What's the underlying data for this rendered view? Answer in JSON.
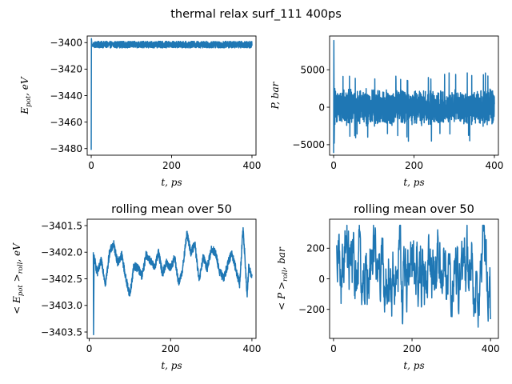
{
  "figure": {
    "suptitle": "thermal relax surf_111 400ps"
  },
  "colors": {
    "line": "#1f77b4",
    "axis": "#000000",
    "background": "#ffffff"
  },
  "chart_data": [
    {
      "type": "line",
      "title": "",
      "xlabel_main": "t, ps",
      "ylabel_main": "E",
      "ylabel_sub": "pot",
      "ylabel_tail": ", eV",
      "xlim": [
        -10,
        410
      ],
      "ylim": [
        -3485,
        -3395
      ],
      "xticks": [
        0,
        200,
        400
      ],
      "yticks": [
        -3480,
        -3460,
        -3440,
        -3420,
        -3400
      ],
      "xtick_labels": [
        "0",
        "200",
        "400"
      ],
      "ytick_labels": [
        "−3480",
        "−3460",
        "−3440",
        "−3420",
        "−3400"
      ],
      "grid": false,
      "series": [
        {
          "x_start": 0,
          "x_end": 400,
          "level": -3401.5,
          "amplitude": 2.5,
          "initial_points": [
            [
              0,
              -3481
            ],
            [
              0.5,
              -3397
            ],
            [
              2,
              -3403
            ],
            [
              5,
              -3401
            ]
          ]
        }
      ]
    },
    {
      "type": "line",
      "title": "",
      "xlabel_main": "t, ps",
      "ylabel_main": "P, bar",
      "ylabel_sub": "",
      "ylabel_tail": "",
      "xlim": [
        -10,
        410
      ],
      "ylim": [
        -6400,
        9500
      ],
      "xticks": [
        0,
        200,
        400
      ],
      "yticks": [
        -5000,
        0,
        5000
      ],
      "xtick_labels": [
        "0",
        "200",
        "400"
      ],
      "ytick_labels": [
        "−5000",
        "0",
        "5000"
      ],
      "grid": false,
      "series": [
        {
          "x_start": 0,
          "x_end": 400,
          "level": 0,
          "amplitude": 2600,
          "initial_points": [
            [
              0,
              -6100
            ],
            [
              0.6,
              8900
            ],
            [
              1.5,
              -4800
            ],
            [
              3,
              2500
            ]
          ]
        }
      ]
    },
    {
      "type": "line",
      "title": "rolling mean over 50",
      "xlabel_main": "t, ps",
      "ylabel_main": "< E",
      "ylabel_sub": "pot",
      "ylabel_tail": " >",
      "ylabel_sub2": "roll",
      "ylabel_tail2": ", eV",
      "xlim": [
        -5,
        410
      ],
      "ylim": [
        -3403.62,
        -3401.38
      ],
      "xticks": [
        0,
        200,
        400
      ],
      "yticks": [
        -3403.5,
        -3403.0,
        -3402.5,
        -3402.0,
        -3401.5
      ],
      "xtick_labels": [
        "0",
        "200",
        "400"
      ],
      "ytick_labels": [
        "−3403.5",
        "−3403.0",
        "−3402.5",
        "−3402.0",
        "−3401.5"
      ],
      "grid": false,
      "series": [
        {
          "x_start": 10,
          "x_end": 400,
          "keypoints": [
            [
              10,
              -3402.0
            ],
            [
              10.6,
              -3403.55
            ],
            [
              12,
              -3402.1
            ],
            [
              20,
              -3402.4
            ],
            [
              30,
              -3402.15
            ],
            [
              40,
              -3402.6
            ],
            [
              50,
              -3402.0
            ],
            [
              60,
              -3401.85
            ],
            [
              70,
              -3402.2
            ],
            [
              80,
              -3402.05
            ],
            [
              90,
              -3402.5
            ],
            [
              100,
              -3402.8
            ],
            [
              110,
              -3402.25
            ],
            [
              120,
              -3402.3
            ],
            [
              130,
              -3402.45
            ],
            [
              140,
              -3402.05
            ],
            [
              150,
              -3402.15
            ],
            [
              160,
              -3402.3
            ],
            [
              170,
              -3402.0
            ],
            [
              180,
              -3402.4
            ],
            [
              190,
              -3402.2
            ],
            [
              200,
              -3402.3
            ],
            [
              210,
              -3402.1
            ],
            [
              220,
              -3402.6
            ],
            [
              230,
              -3402.3
            ],
            [
              240,
              -3401.65
            ],
            [
              250,
              -3402.0
            ],
            [
              260,
              -3401.85
            ],
            [
              270,
              -3402.55
            ],
            [
              280,
              -3402.1
            ],
            [
              290,
              -3402.3
            ],
            [
              300,
              -3401.95
            ],
            [
              310,
              -3402.0
            ],
            [
              320,
              -3402.35
            ],
            [
              330,
              -3402.5
            ],
            [
              340,
              -3402.25
            ],
            [
              350,
              -3402.0
            ],
            [
              360,
              -3402.3
            ],
            [
              370,
              -3402.6
            ],
            [
              378,
              -3401.55
            ],
            [
              382,
              -3402.0
            ],
            [
              388,
              -3402.85
            ],
            [
              392,
              -3402.3
            ],
            [
              400,
              -3402.45
            ]
          ],
          "noise": 0.08
        }
      ]
    },
    {
      "type": "line",
      "title": "rolling mean over 50",
      "xlabel_main": "t, ps",
      "ylabel_main": "< P >",
      "ylabel_sub": "roll",
      "ylabel_tail": ", bar",
      "xlim": [
        -10,
        420
      ],
      "ylim": [
        -390,
        390
      ],
      "xticks": [
        0,
        200,
        400
      ],
      "yticks": [
        -200,
        0,
        200
      ],
      "xtick_labels": [
        "0",
        "200",
        "400"
      ],
      "ytick_labels": [
        "−200",
        "0",
        "200"
      ],
      "grid": false,
      "series": [
        {
          "x_start": 8,
          "x_end": 400,
          "level": 0,
          "amplitude": 200,
          "initial_points": [
            [
              8,
              220
            ],
            [
              10,
              -20
            ],
            [
              12,
              250
            ]
          ],
          "noise": 60
        }
      ]
    }
  ]
}
